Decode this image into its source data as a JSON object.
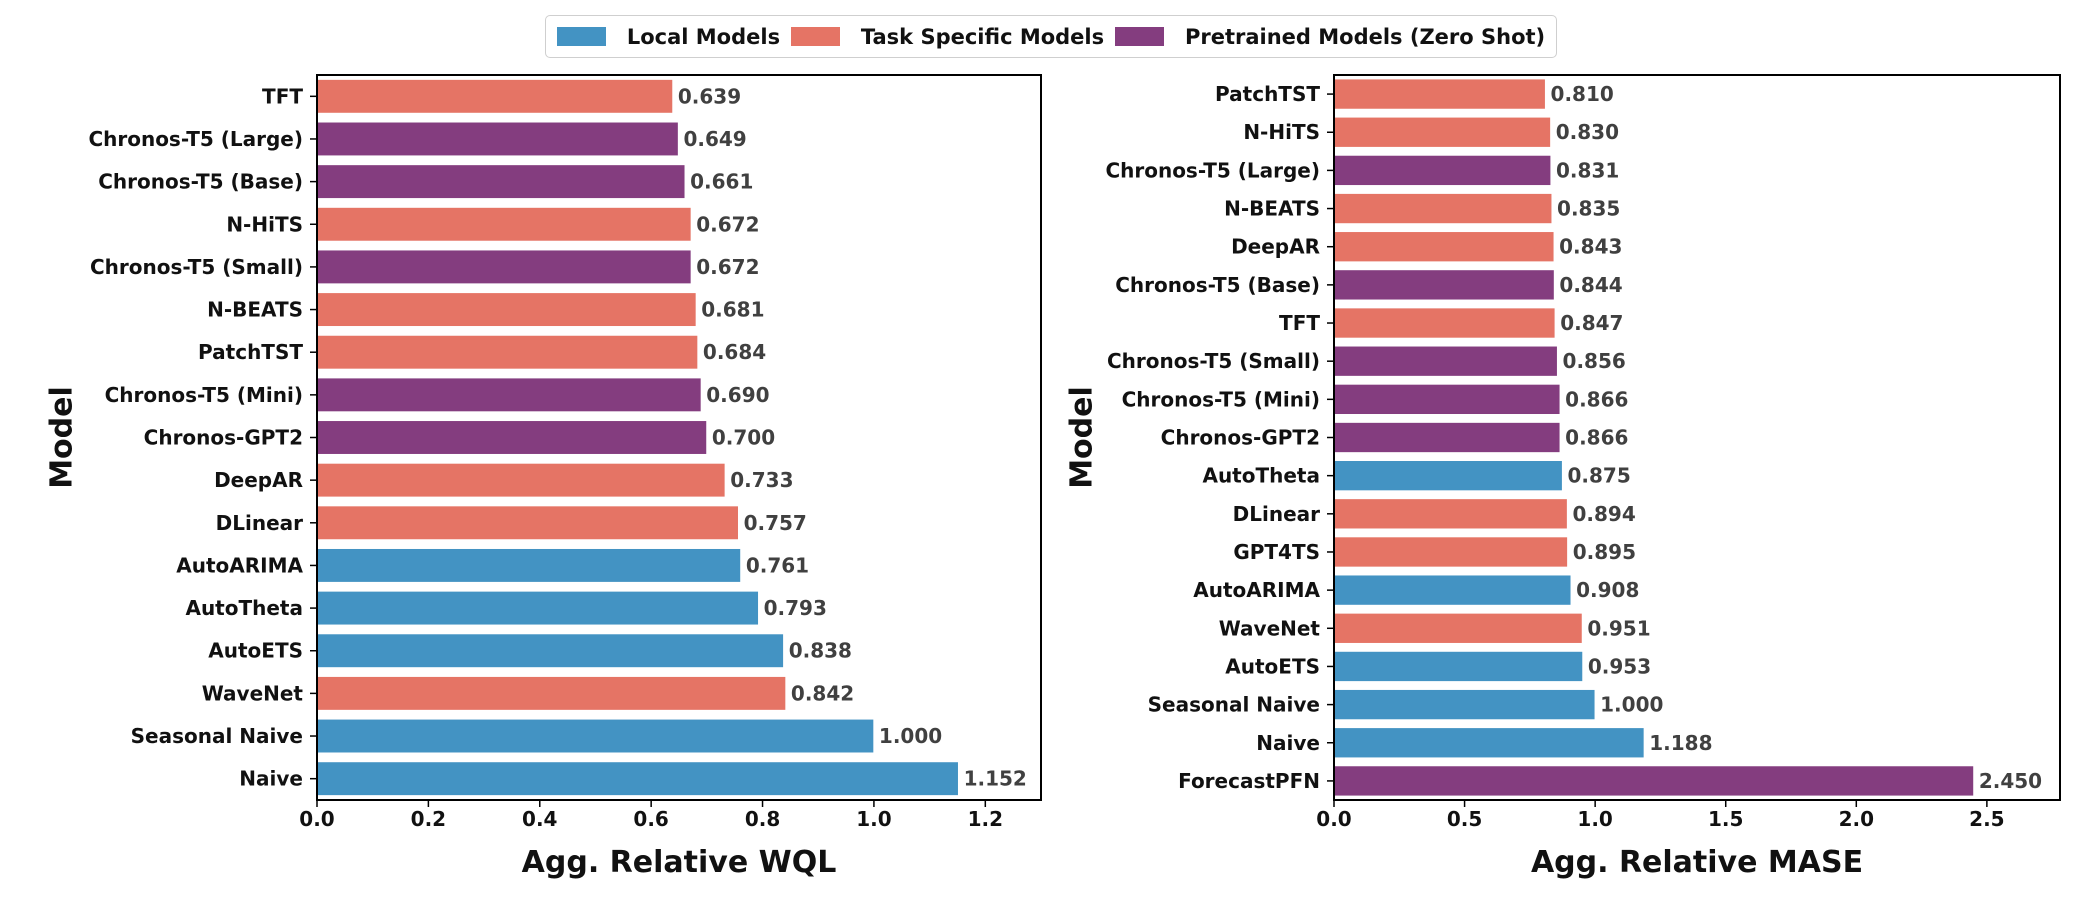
{
  "legend": {
    "items": [
      {
        "label": "Local Models",
        "color": "#4393c3"
      },
      {
        "label": "Task Specific Models",
        "color": "#e57465"
      },
      {
        "label": "Pretrained Models (Zero Shot)",
        "color": "#843d7f"
      }
    ]
  },
  "chart_data": [
    {
      "type": "bar",
      "orientation": "horizontal",
      "xlabel": "Agg. Relative WQL",
      "ylabel": "Model",
      "xlim": [
        0,
        1.3
      ],
      "xticks": [
        0.0,
        0.2,
        0.4,
        0.6,
        0.8,
        1.0,
        1.2
      ],
      "xtick_labels": [
        "0.0",
        "0.2",
        "0.4",
        "0.6",
        "0.8",
        "1.0",
        "1.2"
      ],
      "grid": false,
      "legend_position": "top-center",
      "bars": [
        {
          "label": "TFT",
          "value": 0.639,
          "value_label": "0.639",
          "group": "Task Specific Models"
        },
        {
          "label": "Chronos-T5 (Large)",
          "value": 0.649,
          "value_label": "0.649",
          "group": "Pretrained Models (Zero Shot)"
        },
        {
          "label": "Chronos-T5 (Base)",
          "value": 0.661,
          "value_label": "0.661",
          "group": "Pretrained Models (Zero Shot)"
        },
        {
          "label": "N-HiTS",
          "value": 0.672,
          "value_label": "0.672",
          "group": "Task Specific Models"
        },
        {
          "label": "Chronos-T5 (Small)",
          "value": 0.672,
          "value_label": "0.672",
          "group": "Pretrained Models (Zero Shot)"
        },
        {
          "label": "N-BEATS",
          "value": 0.681,
          "value_label": "0.681",
          "group": "Task Specific Models"
        },
        {
          "label": "PatchTST",
          "value": 0.684,
          "value_label": "0.684",
          "group": "Task Specific Models"
        },
        {
          "label": "Chronos-T5 (Mini)",
          "value": 0.69,
          "value_label": "0.690",
          "group": "Pretrained Models (Zero Shot)"
        },
        {
          "label": "Chronos-GPT2",
          "value": 0.7,
          "value_label": "0.700",
          "group": "Pretrained Models (Zero Shot)"
        },
        {
          "label": "DeepAR",
          "value": 0.733,
          "value_label": "0.733",
          "group": "Task Specific Models"
        },
        {
          "label": "DLinear",
          "value": 0.757,
          "value_label": "0.757",
          "group": "Task Specific Models"
        },
        {
          "label": "AutoARIMA",
          "value": 0.761,
          "value_label": "0.761",
          "group": "Local Models"
        },
        {
          "label": "AutoTheta",
          "value": 0.793,
          "value_label": "0.793",
          "group": "Local Models"
        },
        {
          "label": "AutoETS",
          "value": 0.838,
          "value_label": "0.838",
          "group": "Local Models"
        },
        {
          "label": "WaveNet",
          "value": 0.842,
          "value_label": "0.842",
          "group": "Task Specific Models"
        },
        {
          "label": "Seasonal Naive",
          "value": 1.0,
          "value_label": "1.000",
          "group": "Local Models"
        },
        {
          "label": "Naive",
          "value": 1.152,
          "value_label": "1.152",
          "group": "Local Models"
        }
      ]
    },
    {
      "type": "bar",
      "orientation": "horizontal",
      "xlabel": "Agg. Relative MASE",
      "ylabel": "Model",
      "xlim": [
        0,
        2.78
      ],
      "xticks": [
        0.0,
        0.5,
        1.0,
        1.5,
        2.0,
        2.5
      ],
      "xtick_labels": [
        "0.0",
        "0.5",
        "1.0",
        "1.5",
        "2.0",
        "2.5"
      ],
      "grid": false,
      "bars": [
        {
          "label": "PatchTST",
          "value": 0.81,
          "value_label": "0.810",
          "group": "Task Specific Models"
        },
        {
          "label": "N-HiTS",
          "value": 0.83,
          "value_label": "0.830",
          "group": "Task Specific Models"
        },
        {
          "label": "Chronos-T5 (Large)",
          "value": 0.831,
          "value_label": "0.831",
          "group": "Pretrained Models (Zero Shot)"
        },
        {
          "label": "N-BEATS",
          "value": 0.835,
          "value_label": "0.835",
          "group": "Task Specific Models"
        },
        {
          "label": "DeepAR",
          "value": 0.843,
          "value_label": "0.843",
          "group": "Task Specific Models"
        },
        {
          "label": "Chronos-T5 (Base)",
          "value": 0.844,
          "value_label": "0.844",
          "group": "Pretrained Models (Zero Shot)"
        },
        {
          "label": "TFT",
          "value": 0.847,
          "value_label": "0.847",
          "group": "Task Specific Models"
        },
        {
          "label": "Chronos-T5 (Small)",
          "value": 0.856,
          "value_label": "0.856",
          "group": "Pretrained Models (Zero Shot)"
        },
        {
          "label": "Chronos-T5 (Mini)",
          "value": 0.866,
          "value_label": "0.866",
          "group": "Pretrained Models (Zero Shot)"
        },
        {
          "label": "Chronos-GPT2",
          "value": 0.866,
          "value_label": "0.866",
          "group": "Pretrained Models (Zero Shot)"
        },
        {
          "label": "AutoTheta",
          "value": 0.875,
          "value_label": "0.875",
          "group": "Local Models"
        },
        {
          "label": "DLinear",
          "value": 0.894,
          "value_label": "0.894",
          "group": "Task Specific Models"
        },
        {
          "label": "GPT4TS",
          "value": 0.895,
          "value_label": "0.895",
          "group": "Task Specific Models"
        },
        {
          "label": "AutoARIMA",
          "value": 0.908,
          "value_label": "0.908",
          "group": "Local Models"
        },
        {
          "label": "WaveNet",
          "value": 0.951,
          "value_label": "0.951",
          "group": "Task Specific Models"
        },
        {
          "label": "AutoETS",
          "value": 0.953,
          "value_label": "0.953",
          "group": "Local Models"
        },
        {
          "label": "Seasonal Naive",
          "value": 1.0,
          "value_label": "1.000",
          "group": "Local Models"
        },
        {
          "label": "Naive",
          "value": 1.188,
          "value_label": "1.188",
          "group": "Local Models"
        },
        {
          "label": "ForecastPFN",
          "value": 2.45,
          "value_label": "2.450",
          "group": "Pretrained Models (Zero Shot)"
        }
      ]
    }
  ]
}
